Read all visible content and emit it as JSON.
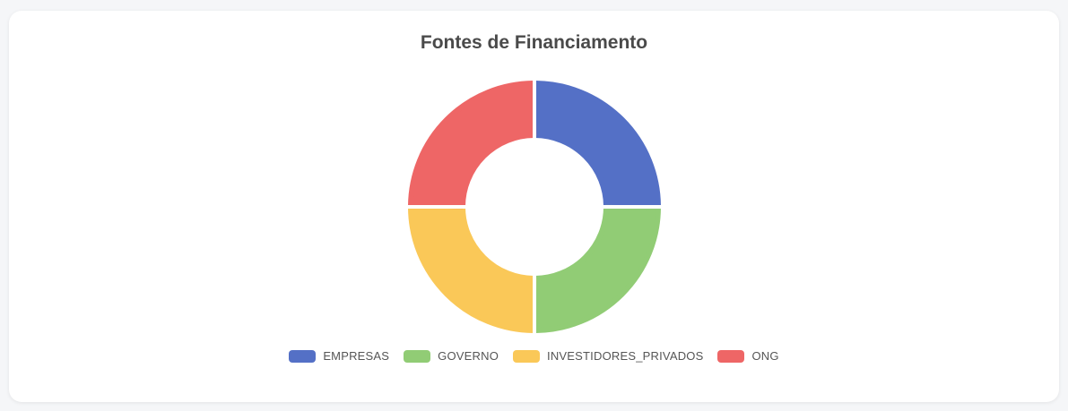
{
  "chart_data": {
    "type": "pie",
    "variant": "doughnut",
    "title": "Fontes de Financiamento",
    "categories": [
      "EMPRESAS",
      "GOVERNO",
      "INVESTIDORES_PRIVADOS",
      "ONG"
    ],
    "values": [
      25,
      25,
      25,
      25
    ],
    "colors": [
      "#5470c6",
      "#91cc75",
      "#fac858",
      "#ee6666"
    ],
    "legend_position": "bottom"
  }
}
